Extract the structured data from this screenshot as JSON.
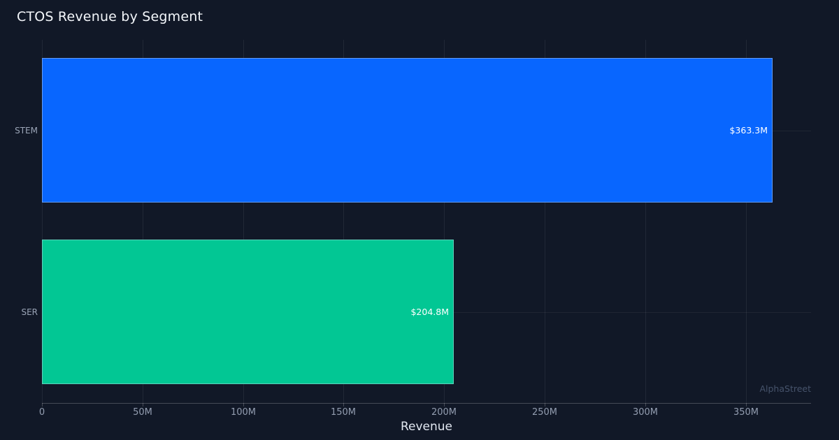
{
  "title": "CTOS Revenue by Segment",
  "watermark": "AlphaStreet",
  "chart_data": {
    "type": "bar",
    "orientation": "horizontal",
    "title": "CTOS Revenue by Segment",
    "categories": [
      "STEM",
      "SER"
    ],
    "values": [
      363.3,
      204.8
    ],
    "value_unit": "millions USD",
    "value_labels": [
      "$363.3M",
      "$204.8M"
    ],
    "bar_colors": [
      "#0866ff",
      "#02c794"
    ],
    "xlabel": "Revenue",
    "ylabel": "",
    "xlim": [
      0,
      382.5
    ],
    "xticks": [
      0,
      50,
      100,
      150,
      200,
      250,
      300,
      350
    ],
    "xtick_labels": [
      "0",
      "50M",
      "100M",
      "150M",
      "200M",
      "250M",
      "300M",
      "350M"
    ],
    "grid": true,
    "legend": false
  },
  "colors": {
    "background": "#111827",
    "grid": "rgba(255,255,255,0.07)",
    "axis": "rgba(255,255,255,0.22)",
    "title_text": "#f3f6fa",
    "tick_text": "#939db0",
    "category_text": "#9aa4b6",
    "value_text": "#ffffff",
    "axis_label_text": "#e2e8f1",
    "watermark_text": "#46536b",
    "bar_blue": "#0866ff",
    "bar_green": "#02c794"
  }
}
